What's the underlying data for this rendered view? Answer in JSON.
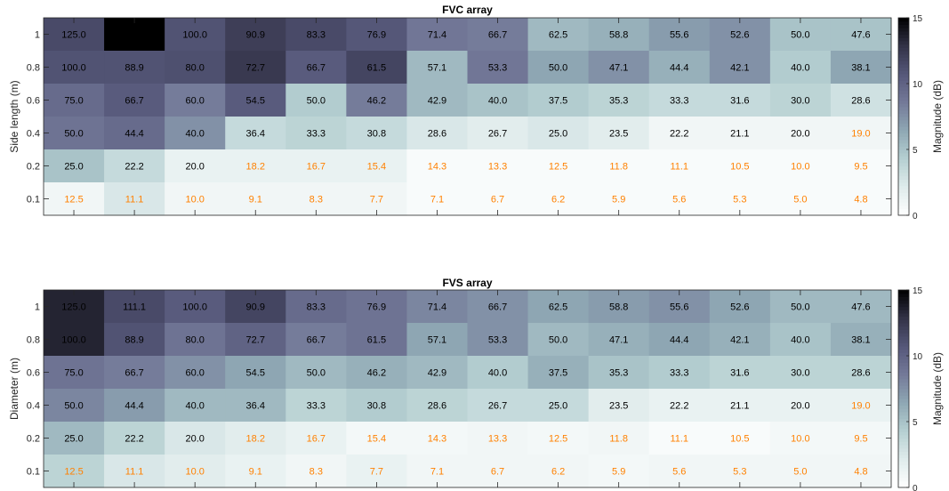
{
  "colors": {
    "colormap": [
      "#ffffff",
      "#e0ecec",
      "#b6d0d2",
      "#8fa8b4",
      "#747a99",
      "#56587a",
      "#333348",
      "#000000"
    ],
    "label_dark": "#000000",
    "label_light": "#ff8000"
  },
  "chart_data": [
    {
      "type": "heatmap",
      "title": "FVC array",
      "xlabel": "",
      "ylabel": "Side length (m)",
      "y_tick_labels": [
        "1",
        "0.8",
        "0.6",
        "0.4",
        "0.2",
        "0.1"
      ],
      "colorbar": {
        "label": "Magnitude (dB)",
        "ticks": [
          "0",
          "5",
          "10",
          "15"
        ],
        "range": [
          0,
          15
        ]
      },
      "cell_labels": [
        [
          "125.0",
          "",
          "100.0",
          "90.9",
          "83.3",
          "76.9",
          "71.4",
          "66.7",
          "62.5",
          "58.8",
          "55.6",
          "52.6",
          "50.0",
          "47.6"
        ],
        [
          "100.0",
          "88.9",
          "80.0",
          "72.7",
          "66.7",
          "61.5",
          "57.1",
          "53.3",
          "50.0",
          "47.1",
          "44.4",
          "42.1",
          "40.0",
          "38.1"
        ],
        [
          "75.0",
          "66.7",
          "60.0",
          "54.5",
          "50.0",
          "46.2",
          "42.9",
          "40.0",
          "37.5",
          "35.3",
          "33.3",
          "31.6",
          "30.0",
          "28.6"
        ],
        [
          "50.0",
          "44.4",
          "40.0",
          "36.4",
          "33.3",
          "30.8",
          "28.6",
          "26.7",
          "25.0",
          "23.5",
          "22.2",
          "21.1",
          "20.0",
          "19.0"
        ],
        [
          "25.0",
          "22.2",
          "20.0",
          "18.2",
          "16.7",
          "15.4",
          "14.3",
          "13.3",
          "12.5",
          "11.8",
          "11.1",
          "10.5",
          "10.0",
          "9.5"
        ],
        [
          "12.5",
          "11.1",
          "10.0",
          "9.1",
          "8.3",
          "7.7",
          "7.1",
          "6.7",
          "6.2",
          "5.9",
          "5.6",
          "5.3",
          "5.0",
          "4.8"
        ]
      ],
      "magnitude_db": [
        [
          11.5,
          15.0,
          11.0,
          12.2,
          11.5,
          10.8,
          8.8,
          8.5,
          5.5,
          6.0,
          7.0,
          7.5,
          5.0,
          5.0
        ],
        [
          11.0,
          11.0,
          11.2,
          12.5,
          10.5,
          11.8,
          5.5,
          8.8,
          6.5,
          7.5,
          6.0,
          7.5,
          4.5,
          6.5
        ],
        [
          9.5,
          10.5,
          8.5,
          10.5,
          4.5,
          8.5,
          5.5,
          5.0,
          4.5,
          4.0,
          3.5,
          3.5,
          4.0,
          3.0
        ],
        [
          9.0,
          9.5,
          7.5,
          3.5,
          4.0,
          3.5,
          2.5,
          2.0,
          2.5,
          2.0,
          1.0,
          1.0,
          1.0,
          1.0
        ],
        [
          5.0,
          3.5,
          1.5,
          1.5,
          1.5,
          1.5,
          0.5,
          0.5,
          0.5,
          0.5,
          0.5,
          0.5,
          0.5,
          0.5
        ],
        [
          1.0,
          2.5,
          1.0,
          1.0,
          1.0,
          1.0,
          0.5,
          0.5,
          0.5,
          0.5,
          0.5,
          0.5,
          0.5,
          0.5
        ]
      ]
    },
    {
      "type": "heatmap",
      "title": "FVS array",
      "xlabel": "",
      "ylabel": "Diameter (m)",
      "y_tick_labels": [
        "1",
        "0.8",
        "0.6",
        "0.4",
        "0.2",
        "0.1"
      ],
      "colorbar": {
        "label": "Magnitude (dB)",
        "ticks": [
          "0",
          "5",
          "10",
          "15"
        ],
        "range": [
          0,
          15
        ]
      },
      "cell_labels": [
        [
          "125.0",
          "111.1",
          "100.0",
          "90.9",
          "83.3",
          "76.9",
          "71.4",
          "66.7",
          "62.5",
          "58.8",
          "55.6",
          "52.6",
          "50.0",
          "47.6"
        ],
        [
          "100.0",
          "88.9",
          "80.0",
          "72.7",
          "66.7",
          "61.5",
          "57.1",
          "53.3",
          "50.0",
          "47.1",
          "44.4",
          "42.1",
          "40.0",
          "38.1"
        ],
        [
          "75.0",
          "66.7",
          "60.0",
          "54.5",
          "50.0",
          "46.2",
          "42.9",
          "40.0",
          "37.5",
          "35.3",
          "33.3",
          "31.6",
          "30.0",
          "28.6"
        ],
        [
          "50.0",
          "44.4",
          "40.0",
          "36.4",
          "33.3",
          "30.8",
          "28.6",
          "26.7",
          "25.0",
          "23.5",
          "22.2",
          "21.1",
          "20.0",
          "19.0"
        ],
        [
          "25.0",
          "22.2",
          "20.0",
          "18.2",
          "16.7",
          "15.4",
          "14.3",
          "13.3",
          "12.5",
          "11.8",
          "11.1",
          "10.5",
          "10.0",
          "9.5"
        ],
        [
          "12.5",
          "11.1",
          "10.0",
          "9.1",
          "8.3",
          "7.7",
          "7.1",
          "6.7",
          "6.2",
          "5.9",
          "5.6",
          "5.3",
          "5.0",
          "4.8"
        ]
      ],
      "magnitude_db": [
        [
          13.5,
          11.5,
          10.5,
          11.8,
          9.5,
          9.0,
          8.0,
          7.5,
          6.5,
          7.0,
          7.5,
          6.5,
          5.5,
          5.5
        ],
        [
          13.5,
          11.0,
          9.0,
          10.0,
          8.5,
          9.0,
          6.5,
          7.5,
          5.5,
          6.0,
          6.5,
          6.0,
          5.0,
          6.0
        ],
        [
          9.0,
          8.5,
          7.5,
          6.5,
          5.5,
          6.0,
          5.5,
          4.5,
          6.0,
          5.0,
          4.5,
          4.0,
          4.0,
          4.0
        ],
        [
          8.0,
          7.0,
          5.5,
          5.5,
          4.0,
          4.5,
          4.0,
          3.5,
          3.5,
          2.0,
          1.5,
          1.5,
          1.5,
          1.5
        ],
        [
          5.5,
          4.0,
          2.5,
          2.0,
          1.5,
          0.8,
          0.8,
          1.0,
          0.8,
          1.0,
          0.5,
          0.5,
          0.8,
          0.8
        ],
        [
          4.0,
          2.5,
          2.0,
          1.5,
          1.0,
          1.5,
          1.0,
          1.0,
          1.0,
          0.8,
          1.0,
          1.0,
          1.0,
          1.0
        ]
      ]
    }
  ]
}
